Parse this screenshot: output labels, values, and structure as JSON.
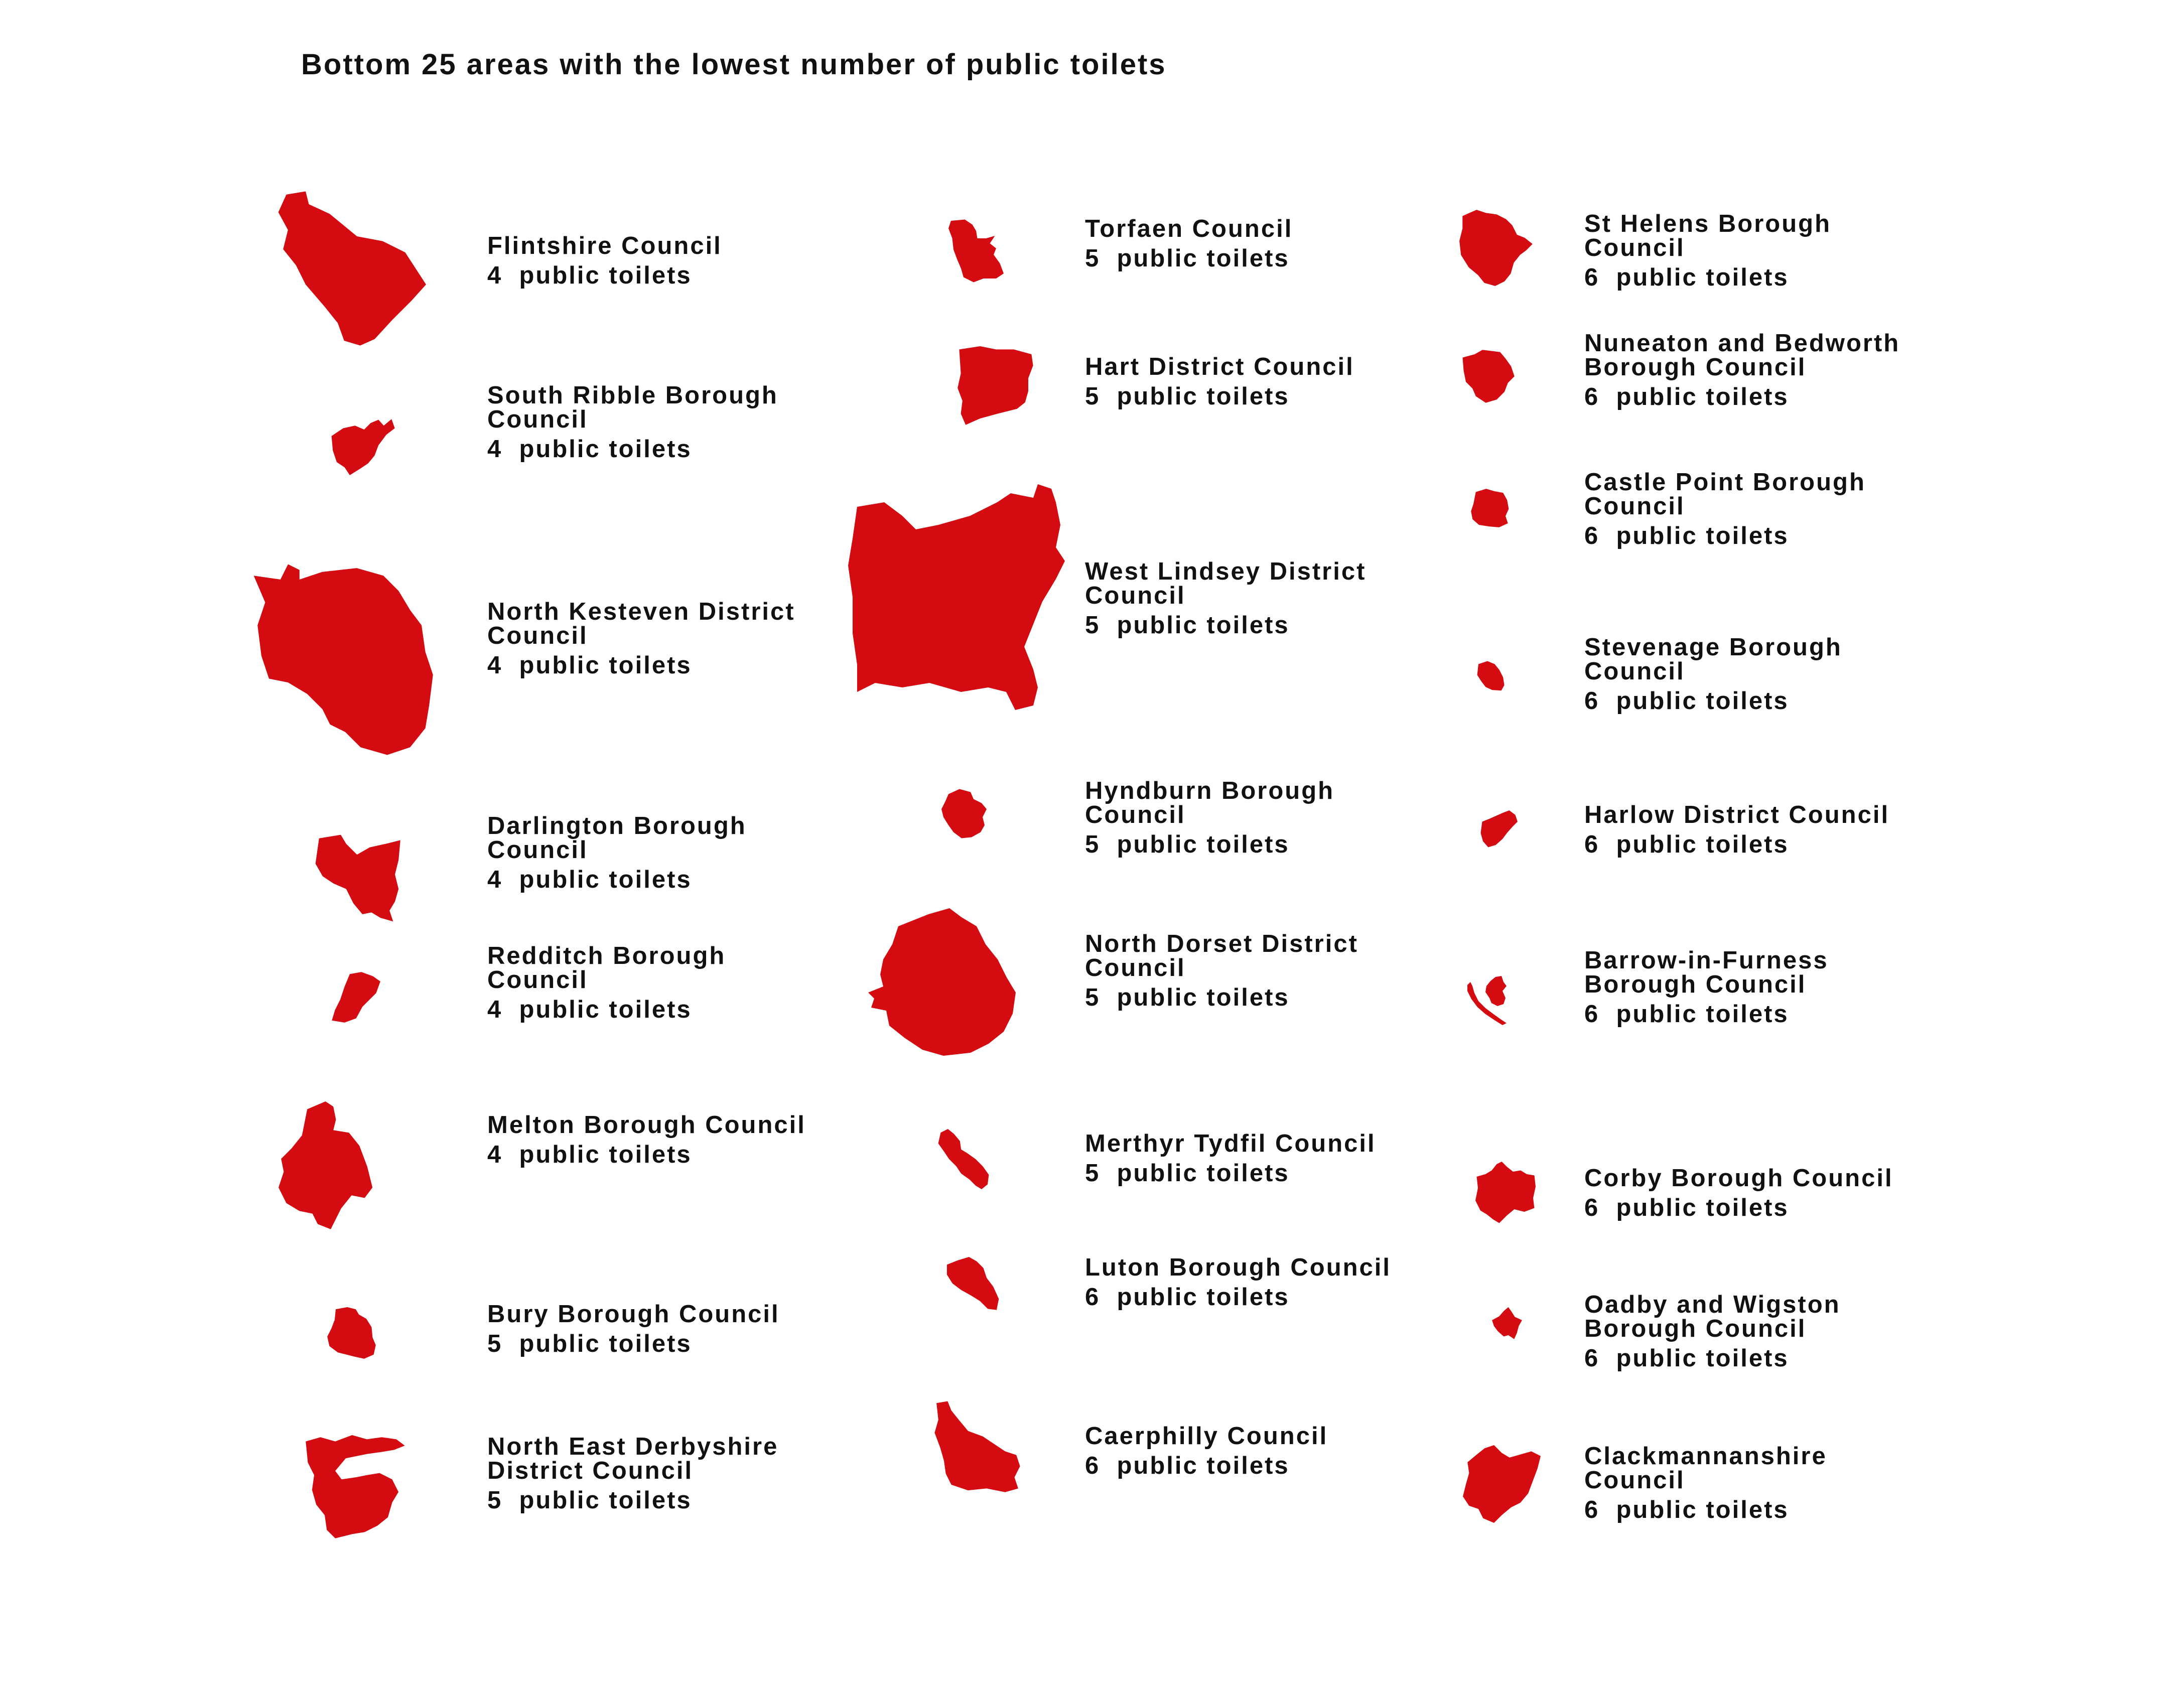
{
  "title": "Bottom 25 areas with the lowest number of public toilets",
  "unit_label": "public toilets",
  "accent_color": "#d40b10",
  "areas": [
    {
      "name": "Flintshire Council",
      "toilets": 4,
      "count_text": "4  public toilets"
    },
    {
      "name": "South Ribble Borough Council",
      "toilets": 4,
      "count_text": "4  public toilets"
    },
    {
      "name": "North Kesteven District Council",
      "toilets": 4,
      "count_text": "4  public toilets"
    },
    {
      "name": "Darlington Borough Council",
      "toilets": 4,
      "count_text": "4  public toilets"
    },
    {
      "name": "Redditch Borough Council",
      "toilets": 4,
      "count_text": "4  public toilets"
    },
    {
      "name": "Melton Borough Council",
      "toilets": 4,
      "count_text": "4  public toilets"
    },
    {
      "name": "Bury Borough Council",
      "toilets": 5,
      "count_text": "5  public toilets"
    },
    {
      "name": "North East Derbyshire District Council",
      "toilets": 5,
      "count_text": "5  public toilets"
    },
    {
      "name": "Torfaen Council",
      "toilets": 5,
      "count_text": "5  public toilets"
    },
    {
      "name": "Hart District Council",
      "toilets": 5,
      "count_text": "5  public toilets"
    },
    {
      "name": "West Lindsey District Council",
      "toilets": 5,
      "count_text": "5  public toilets"
    },
    {
      "name": "Hyndburn Borough Council",
      "toilets": 5,
      "count_text": "5  public toilets"
    },
    {
      "name": "North Dorset District Council",
      "toilets": 5,
      "count_text": "5  public toilets"
    },
    {
      "name": "Merthyr Tydfil Council",
      "toilets": 5,
      "count_text": "5  public toilets"
    },
    {
      "name": "Luton Borough Council",
      "toilets": 6,
      "count_text": "6  public toilets"
    },
    {
      "name": "Caerphilly Council",
      "toilets": 6,
      "count_text": "6  public toilets"
    },
    {
      "name": "St Helens Borough Council",
      "toilets": 6,
      "count_text": "6  public toilets"
    },
    {
      "name": "Nuneaton and Bedworth Borough Council",
      "toilets": 6,
      "count_text": "6  public toilets"
    },
    {
      "name": "Castle Point Borough Council",
      "toilets": 6,
      "count_text": "6  public toilets"
    },
    {
      "name": "Stevenage Borough Council",
      "toilets": 6,
      "count_text": "6  public toilets"
    },
    {
      "name": "Harlow District Council",
      "toilets": 6,
      "count_text": "6  public toilets"
    },
    {
      "name": "Barrow-in-Furness Borough Council",
      "toilets": 6,
      "count_text": "6  public toilets"
    },
    {
      "name": "Corby Borough Council",
      "toilets": 6,
      "count_text": "6  public toilets"
    },
    {
      "name": "Oadby and Wigston Borough Council",
      "toilets": 6,
      "count_text": "6  public toilets"
    },
    {
      "name": "Clackmannanshire Council",
      "toilets": 6,
      "count_text": "6  public toilets"
    }
  ]
}
